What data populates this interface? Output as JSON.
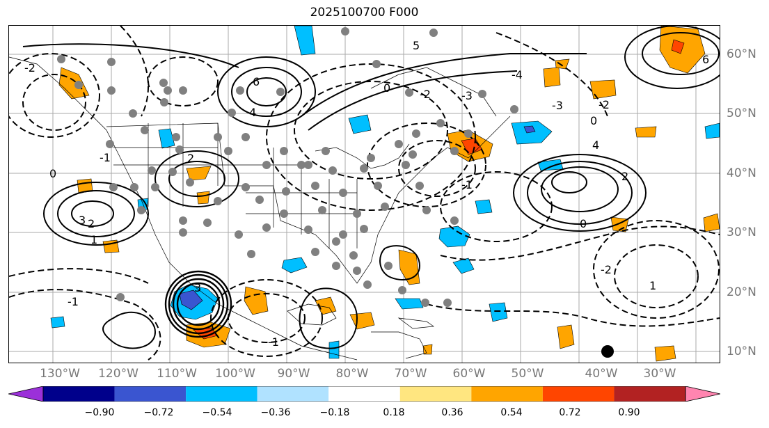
{
  "title": "2025100700 F000",
  "lon_labels": [
    "130°W",
    "120°W",
    "110°W",
    "100°W",
    "90°W",
    "80°W",
    "70°W",
    "60°W",
    "50°W",
    "40°W",
    "30°W"
  ],
  "lat_labels": [
    "60°N",
    "50°N",
    "40°N",
    "30°N",
    "20°N",
    "10°N"
  ],
  "contour_labels": [
    "-2",
    "-1",
    "0",
    "1",
    "2",
    "3",
    "4",
    "5",
    "6",
    "-2",
    "-3",
    "-4",
    "0",
    "-1",
    "3",
    "2",
    "1",
    "0",
    "-1",
    "-2",
    "4",
    "-3",
    "-2",
    "6",
    "0",
    "-1",
    "2"
  ],
  "colorbar": {
    "ticks": [
      "−0.90",
      "−0.72",
      "−0.54",
      "−0.36",
      "−0.18",
      "0.18",
      "0.36",
      "0.54",
      "0.72",
      "0.90"
    ],
    "colors": [
      "#9b30d9",
      "#00008b",
      "#3a55d0",
      "#00bfff",
      "#b0e2ff",
      "#ffffff",
      "#ffe680",
      "#ffa500",
      "#ff4500",
      "#b22222",
      "#ff85b0"
    ]
  }
}
